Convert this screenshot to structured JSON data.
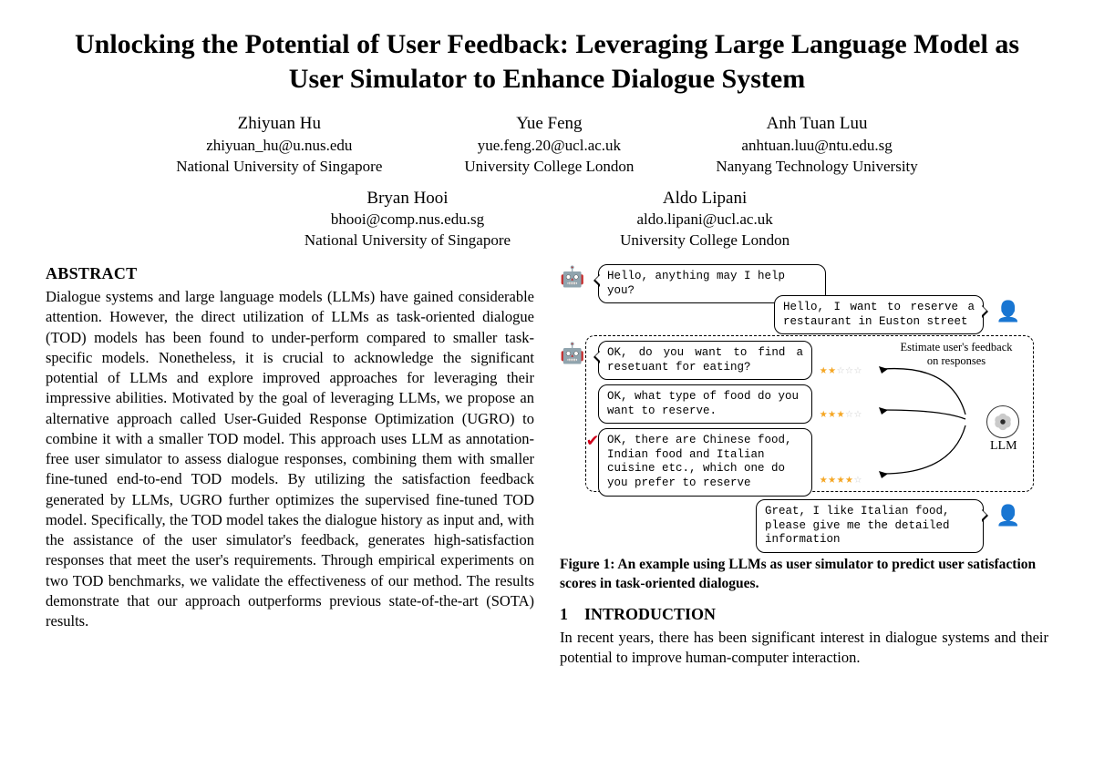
{
  "title": "Unlocking the Potential of User Feedback: Leveraging Large Language Model as User Simulator to Enhance Dialogue System",
  "authors_row1": [
    {
      "name": "Zhiyuan Hu",
      "email": "zhiyuan_hu@u.nus.edu",
      "affil": "National University of Singapore"
    },
    {
      "name": "Yue Feng",
      "email": "yue.feng.20@ucl.ac.uk",
      "affil": "University College London"
    },
    {
      "name": "Anh Tuan Luu",
      "email": "anhtuan.luu@ntu.edu.sg",
      "affil": "Nanyang Technology University"
    }
  ],
  "authors_row2": [
    {
      "name": "Bryan Hooi",
      "email": "bhooi@comp.nus.edu.sg",
      "affil": "National University of Singapore"
    },
    {
      "name": "Aldo Lipani",
      "email": "aldo.lipani@ucl.ac.uk",
      "affil": "University College London"
    }
  ],
  "abstract_heading": "ABSTRACT",
  "abstract_text": "Dialogue systems and large language models (LLMs) have gained considerable attention. However, the direct utilization of LLMs as task-oriented dialogue (TOD) models has been found to under-perform compared to smaller task-specific models. Nonetheless, it is crucial to acknowledge the significant potential of LLMs and explore improved approaches for leveraging their impressive abilities. Motivated by the goal of leveraging LLMs, we propose an alternative approach called User-Guided Response Optimization (UGRO) to combine it with a smaller TOD model. This approach uses LLM as annotation-free user simulator to assess dialogue responses, combining them with smaller fine-tuned end-to-end TOD models. By utilizing the satisfaction feedback generated by LLMs, UGRO further optimizes the supervised fine-tuned TOD model. Specifically, the TOD model takes the dialogue history as input and, with the assistance of the user simulator's feedback, generates high-satisfaction responses that meet the user's requirements. Through empirical experiments on two TOD benchmarks, we validate the effectiveness of our method. The results demonstrate that our approach outperforms previous state-of-the-art (SOTA) results.",
  "figure": {
    "bubbles": {
      "b1": "Hello, anything may I help you?",
      "b2": "Hello, I want to reserve a restaurant in Euston street",
      "b3": "OK, do you want to find a resetuant for eating?",
      "b4": "OK, what type of food do you want to reserve.",
      "b5": "OK, there are Chinese food, Indian food and Italian cuisine etc., which one do you prefer to reserve",
      "b6": "Great, I like Italian food, please give me the detailed information"
    },
    "annotation": "Estimate user's feedback on responses",
    "llm_label": "LLM",
    "stars": {
      "r1": {
        "filled": 2,
        "total": 5
      },
      "r2": {
        "filled": 3,
        "total": 5
      },
      "r3": {
        "filled": 4,
        "total": 5
      }
    },
    "colors": {
      "star_filled": "#f5a623",
      "star_empty": "#cccccc",
      "check": "#d0021b",
      "border": "#000000",
      "bg": "#ffffff"
    }
  },
  "figure_caption": "Figure 1: An example using LLMs as user simulator to predict user satisfaction scores in task-oriented dialogues.",
  "section1_heading": "1 INTRODUCTION",
  "intro_text": "In recent years, there has been significant interest in dialogue systems and their potential to improve human-computer interaction."
}
